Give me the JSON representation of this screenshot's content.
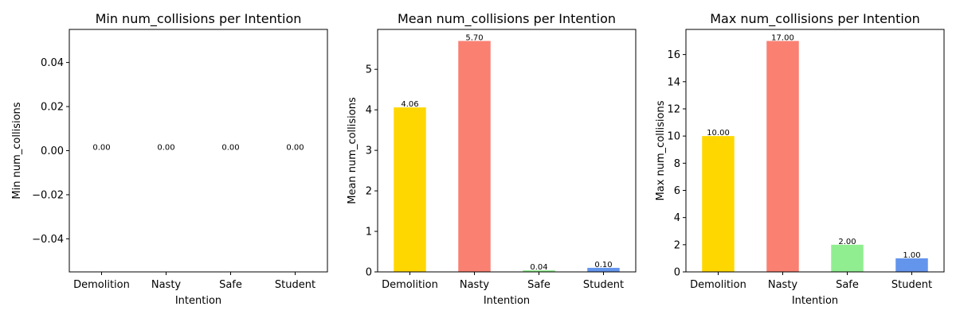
{
  "chart_data": [
    {
      "type": "bar",
      "title": "Min num_collisions per Intention",
      "xlabel": "Intention",
      "ylabel": "Min num_collisions",
      "categories": [
        "Demolition",
        "Nasty",
        "Safe",
        "Student"
      ],
      "values": [
        0,
        0,
        0,
        0
      ],
      "data_labels": [
        "0.00",
        "0.00",
        "0.00",
        "0.00"
      ],
      "ylim": [
        -0.055,
        0.055
      ],
      "yticks": [
        -0.04,
        -0.02,
        0.0,
        0.02,
        0.04
      ],
      "ytick_labels": [
        "−0.04",
        "−0.02",
        "0.00",
        "0.02",
        "0.04"
      ],
      "grid": false
    },
    {
      "type": "bar",
      "title": "Mean num_collisions per Intention",
      "xlabel": "Intention",
      "ylabel": "Mean num_collisions",
      "categories": [
        "Demolition",
        "Nasty",
        "Safe",
        "Student"
      ],
      "values": [
        4.06,
        5.7,
        0.04,
        0.1
      ],
      "data_labels": [
        "4.06",
        "5.70",
        "0.04",
        "0.10"
      ],
      "ylim": [
        0,
        5.985
      ],
      "yticks": [
        0,
        1,
        2,
        3,
        4,
        5
      ],
      "ytick_labels": [
        "0",
        "1",
        "2",
        "3",
        "4",
        "5"
      ],
      "grid": false
    },
    {
      "type": "bar",
      "title": "Max num_collisions per Intention",
      "xlabel": "Intention",
      "ylabel": "Max num_collisions",
      "categories": [
        "Demolition",
        "Nasty",
        "Safe",
        "Student"
      ],
      "values": [
        10,
        17,
        2,
        1
      ],
      "data_labels": [
        "10.00",
        "17.00",
        "2.00",
        "1.00"
      ],
      "ylim": [
        0,
        17.85
      ],
      "yticks": [
        0,
        2,
        4,
        6,
        8,
        10,
        12,
        14,
        16
      ],
      "ytick_labels": [
        "0",
        "2",
        "4",
        "6",
        "8",
        "10",
        "12",
        "14",
        "16"
      ],
      "grid": false
    }
  ],
  "colors": {
    "bars": [
      "#FFD700",
      "#FA8072",
      "#90EE90",
      "#6495ED"
    ],
    "axis": "#000000",
    "background": "#ffffff"
  }
}
